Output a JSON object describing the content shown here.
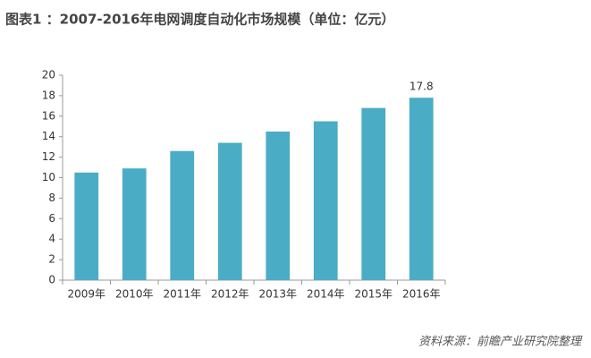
{
  "chart_data": {
    "type": "bar",
    "title": "图表1 ：2007-2016年电网调度自动化市场规模（单位：亿元）",
    "categories": [
      "2009年",
      "2010年",
      "2011年",
      "2012年",
      "2013年",
      "2014年",
      "2015年",
      "2016年"
    ],
    "values": [
      10.5,
      10.9,
      12.6,
      13.4,
      14.5,
      15.5,
      16.8,
      17.8
    ],
    "value_labels": [
      null,
      null,
      null,
      null,
      null,
      null,
      null,
      "17.8"
    ],
    "color": "#4bacc6",
    "ylim": [
      0,
      20
    ],
    "yticks": [
      0,
      2,
      4,
      6,
      8,
      10,
      12,
      14,
      16,
      18,
      20
    ],
    "grid": false,
    "source": "资料来源：前瞻产业研究院整理"
  }
}
